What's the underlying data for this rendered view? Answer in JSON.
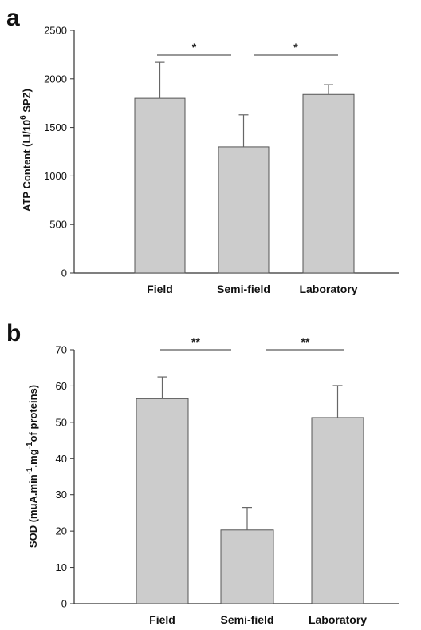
{
  "chart_data": [
    {
      "panel": "a",
      "type": "bar",
      "categories": [
        "Field",
        "Semi-field",
        "Laboratory"
      ],
      "values": [
        1800,
        1300,
        1840
      ],
      "errors": [
        370,
        330,
        100
      ],
      "ylabel": "ATP Content (LI/10",
      "ylabel_sup": "6",
      "ylabel_end": " SPZ)",
      "ylim": [
        0,
        2500
      ],
      "yticks": [
        0,
        500,
        1000,
        1500,
        2000,
        2500
      ],
      "significance": [
        {
          "from": "Field",
          "to": "Semi-field",
          "label": "*"
        },
        {
          "from": "Semi-field",
          "to": "Laboratory",
          "label": "*"
        }
      ]
    },
    {
      "panel": "b",
      "type": "bar",
      "categories": [
        "Field",
        "Semi-field",
        "Laboratory"
      ],
      "values": [
        56.5,
        20.3,
        51.3
      ],
      "errors": [
        6.0,
        6.2,
        8.8
      ],
      "ylabel_parts": [
        "SOD (muA.min",
        "-1",
        ".mg",
        "-1",
        "of proteins)"
      ],
      "ylim": [
        0,
        70
      ],
      "yticks": [
        0,
        10,
        20,
        30,
        40,
        50,
        60,
        70
      ],
      "significance": [
        {
          "from": "Field",
          "to": "Semi-field",
          "label": "**"
        },
        {
          "from": "Semi-field",
          "to": "Laboratory",
          "label": "**"
        }
      ]
    }
  ],
  "colors": {
    "bar_fill": "#cccccc",
    "bar_stroke": "#555555",
    "axis": "#333333"
  }
}
